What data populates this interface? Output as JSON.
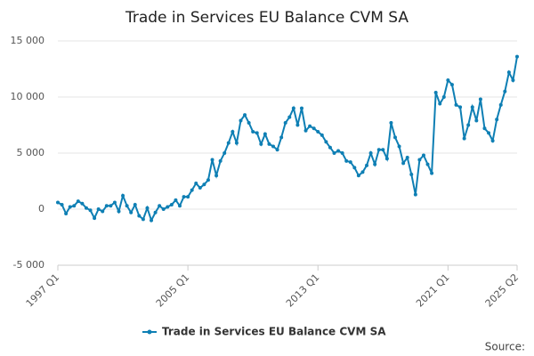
{
  "chart_data": {
    "type": "line",
    "title": "Trade in Services EU Balance CVM SA",
    "categories": [
      "1997 Q1",
      null,
      null,
      null,
      null,
      null,
      null,
      null,
      null,
      null,
      null,
      null,
      null,
      null,
      null,
      null,
      null,
      null,
      null,
      null,
      null,
      null,
      null,
      null,
      null,
      null,
      null,
      null,
      null,
      null,
      null,
      null,
      "2005 Q1",
      null,
      null,
      null,
      null,
      null,
      null,
      null,
      null,
      null,
      null,
      null,
      null,
      null,
      null,
      null,
      null,
      null,
      null,
      null,
      null,
      null,
      null,
      null,
      null,
      null,
      null,
      null,
      null,
      null,
      null,
      null,
      "2013 Q1",
      null,
      null,
      null,
      null,
      null,
      null,
      null,
      null,
      null,
      null,
      null,
      null,
      null,
      null,
      null,
      null,
      null,
      null,
      null,
      null,
      null,
      null,
      null,
      null,
      null,
      null,
      null,
      null,
      null,
      null,
      null,
      "2021 Q1",
      null,
      null,
      null,
      null,
      null,
      null,
      null,
      null,
      null,
      null,
      null,
      null,
      null,
      null,
      null,
      null,
      "2025 Q2"
    ],
    "series": [
      {
        "name": "Trade in Services EU Balance CVM SA",
        "color": "#0e7fb4",
        "values": [
          600,
          400,
          -400,
          200,
          300,
          700,
          500,
          100,
          -100,
          -800,
          0,
          -200,
          300,
          300,
          600,
          -200,
          1200,
          300,
          -300,
          400,
          -600,
          -900,
          100,
          -1000,
          -300,
          300,
          0,
          200,
          400,
          800,
          300,
          1100,
          1100,
          1700,
          2300,
          1900,
          2200,
          2600,
          4400,
          3000,
          4300,
          5000,
          5900,
          6900,
          5900,
          7900,
          8400,
          7700,
          6900,
          6800,
          5800,
          6700,
          5800,
          5600,
          5300,
          6400,
          7700,
          8200,
          9000,
          7500,
          9000,
          7000,
          7400,
          7200,
          6900,
          6600,
          6000,
          5500,
          5000,
          5200,
          5000,
          4300,
          4200,
          3700,
          3000,
          3300,
          3900,
          5000,
          4000,
          5300,
          5300,
          4500,
          7700,
          6400,
          5600,
          4100,
          4600,
          3100,
          1300,
          4400,
          4800,
          4000,
          3200,
          10400,
          9400,
          10000,
          11500,
          11100,
          9300,
          9100,
          6300,
          7500,
          9100,
          7900,
          9800,
          7200,
          6800,
          6100,
          8000,
          9300,
          10500,
          12200,
          11500,
          13600
        ]
      }
    ],
    "ylim": [
      -5000,
      15000
    ],
    "yticks": [
      {
        "value": -5000,
        "label": "-5 000"
      },
      0,
      {
        "value": 5000,
        "label": "5 000"
      },
      {
        "value": 10000,
        "label": "10 000"
      },
      {
        "value": 15000,
        "label": "15 000"
      }
    ],
    "grid": true,
    "legend": "bottom",
    "source": "Source:"
  }
}
